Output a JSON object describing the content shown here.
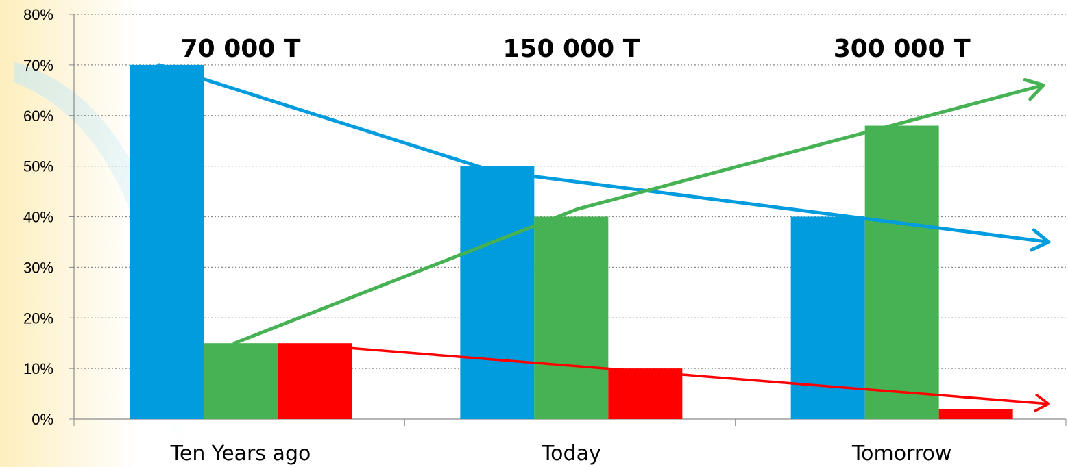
{
  "chart_data": {
    "type": "bar",
    "categories": [
      "Ten Years ago",
      "Today",
      "Tomorrow"
    ],
    "series": [
      {
        "values": [
          70,
          50,
          40
        ],
        "color": "#019CDE"
      },
      {
        "values": [
          15,
          40,
          58
        ],
        "color": "#46B254"
      },
      {
        "values": [
          15,
          10,
          2
        ],
        "color": "#FF0000"
      }
    ],
    "ylim": [
      0,
      80
    ],
    "yticks": [
      0,
      10,
      20,
      30,
      40,
      50,
      60,
      70,
      80
    ],
    "ytick_labels": [
      "0%",
      "10%",
      "20%",
      "30%",
      "40%",
      "50%",
      "60%",
      "70%",
      "80%"
    ],
    "grid": true,
    "annotations": [
      {
        "text": "70 000 T",
        "category": "Ten Years ago"
      },
      {
        "text": "150 000 T",
        "category": "Today"
      },
      {
        "text": "300 000 T",
        "category": "Tomorrow"
      }
    ],
    "trend_arrows": [
      {
        "color": "#019CDE",
        "points": [
          [
            0,
            70
          ],
          [
            1,
            49
          ],
          [
            2,
            35
          ]
        ]
      },
      {
        "color": "#46B254",
        "points": [
          [
            0,
            15
          ],
          [
            1,
            41.5
          ],
          [
            2,
            66
          ]
        ]
      },
      {
        "color": "#FF0000",
        "points": [
          [
            0,
            14.7
          ],
          [
            2,
            3
          ]
        ]
      }
    ]
  }
}
